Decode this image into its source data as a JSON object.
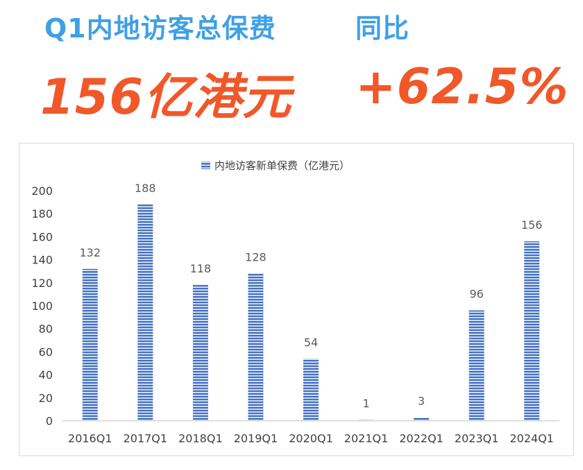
{
  "headline": {
    "left_label": "Q1内地访客总保费",
    "right_label": "同比",
    "left_value": "156亿港元",
    "right_value": "+62.5%"
  },
  "colors": {
    "headline_label": "#3fa0e6",
    "headline_value": "#f0582a",
    "bar_stripe": "#4472c4",
    "axis_line": "#bfbfbf"
  },
  "chart_data": {
    "type": "bar",
    "title": "",
    "xlabel": "",
    "ylabel": "",
    "legend": "内地访客新单保费（亿港元）",
    "legend_position": "top-center",
    "grid": false,
    "ylim": [
      0,
      200
    ],
    "yticks": [
      0,
      20,
      40,
      60,
      80,
      100,
      120,
      140,
      160,
      180,
      200
    ],
    "categories": [
      "2016Q1",
      "2017Q1",
      "2018Q1",
      "2019Q1",
      "2020Q1",
      "2021Q1",
      "2022Q1",
      "2023Q1",
      "2024Q1"
    ],
    "values": [
      132,
      188,
      118,
      128,
      54,
      1,
      3,
      96,
      156
    ],
    "data_labels": [
      "132",
      "188",
      "118",
      "128",
      "54",
      "1",
      "3",
      "96",
      "156"
    ]
  }
}
